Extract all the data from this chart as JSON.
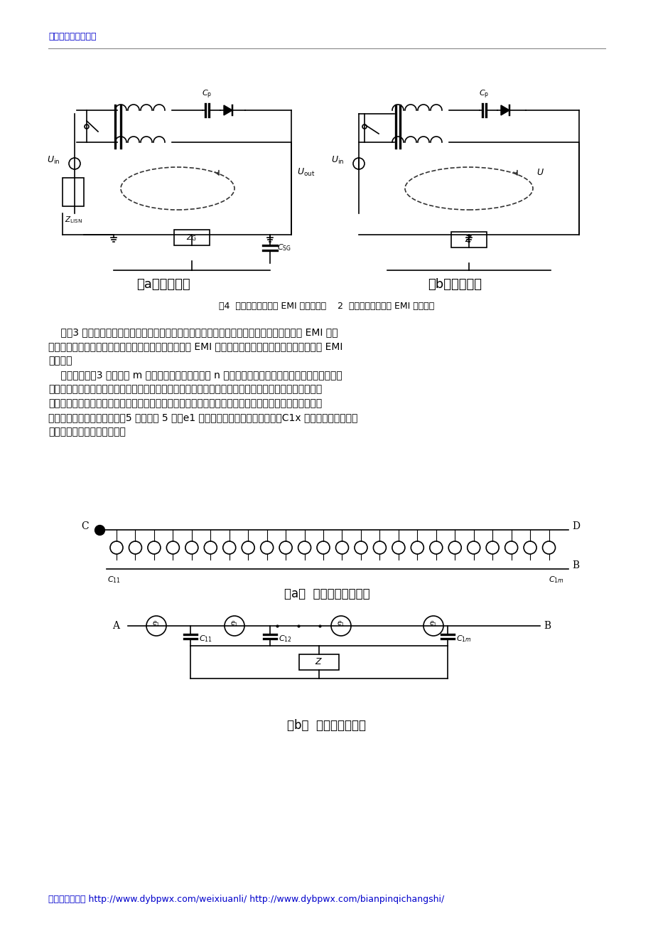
{
  "bg_color": "#ffffff",
  "link_color": "#0000cc",
  "text_color": "#000000",
  "top_link": "东营二手变频器回收",
  "bottom_link": "东营二手变频器 http://www.dybpwx.com/weixiuanli/ http://www.dybpwx.com/bianpinqichangshi/",
  "caption_a": "（a）流通回路",
  "caption_b": "（b）简化回路",
  "fig4_caption": "图4  变压器中共模传导 EMI 的流通回路    2  变压器中共模传导 EMI 数学模型",
  "para1": "    以图3 所示的变压器为例，最上层一次绕组与二次绕组间的寄生电容最大，是产生共模传导 EMI 的主\n要原因，故以下主要分析这两层间分布电容对共模传导 EMI 的影响，忽略变压器其他绕组对共模传导 EMI\n的影响。",
  "para2": "    设一次绕组有3 层，每层 m 匝，二次绕组仅一层，为 n 匝。当变压器磁芯中的磁通发生变化，便会同\n时在一次侧和次级产生感应电动势。根据叠加定理，可认为这是仅一次绕组有感应电动势、二次绕组电动\n势为零和仅二次绕组有感应电动势、一次绕组电动势为零两种情况的叠加。仅一次绕组有感应电动势、二\n次绕组电动势为零的情况如图5 所示。图 5 中：e1 为每匝一次绕组的感应电动势；C1x 为一匝最外层一次绕\n组与二次绕组间的寄生电容。",
  "sub_caption_a": "（a）  变压器内部结构图",
  "sub_caption_b": "（b）  交流等效电路图"
}
